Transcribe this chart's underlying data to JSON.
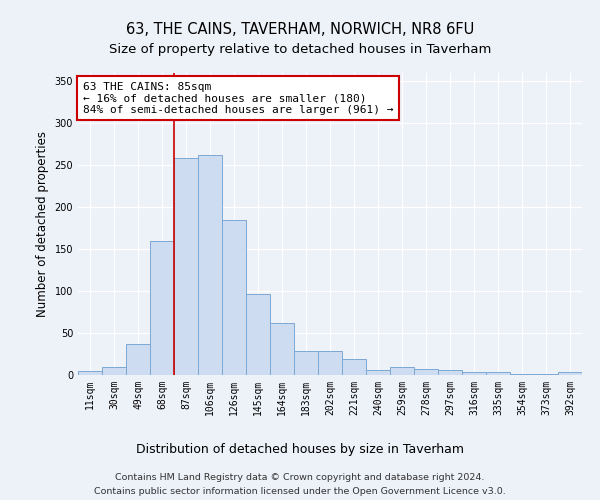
{
  "title": "63, THE CAINS, TAVERHAM, NORWICH, NR8 6FU",
  "subtitle": "Size of property relative to detached houses in Taverham",
  "xlabel": "Distribution of detached houses by size in Taverham",
  "ylabel": "Number of detached properties",
  "categories": [
    "11sqm",
    "30sqm",
    "49sqm",
    "68sqm",
    "87sqm",
    "106sqm",
    "126sqm",
    "145sqm",
    "164sqm",
    "183sqm",
    "202sqm",
    "221sqm",
    "240sqm",
    "259sqm",
    "278sqm",
    "297sqm",
    "316sqm",
    "335sqm",
    "354sqm",
    "373sqm",
    "392sqm"
  ],
  "values": [
    5,
    10,
    37,
    160,
    258,
    262,
    184,
    96,
    62,
    29,
    29,
    19,
    6,
    10,
    7,
    6,
    4,
    4,
    1,
    1,
    4
  ],
  "bar_color": "#cddcf0",
  "bar_edge_color": "#7aa8d4",
  "vline_x_index": 3.5,
  "vline_color": "#cc0000",
  "annotation_text": "63 THE CAINS: 85sqm\n← 16% of detached houses are smaller (180)\n84% of semi-detached houses are larger (961) →",
  "annotation_box_facecolor": "#ffffff",
  "annotation_box_edgecolor": "#cc0000",
  "ylim": [
    0,
    360
  ],
  "yticks": [
    0,
    50,
    100,
    150,
    200,
    250,
    300,
    350
  ],
  "bg_color": "#edf1f8",
  "grid_color": "#d0d8e8",
  "footer_line1": "Contains HM Land Registry data © Crown copyright and database right 2024.",
  "footer_line2": "Contains public sector information licensed under the Open Government Licence v3.0.",
  "title_fontsize": 10.5,
  "subtitle_fontsize": 9.5,
  "annotation_fontsize": 8,
  "tick_fontsize": 7,
  "ylabel_fontsize": 8.5,
  "xlabel_fontsize": 9,
  "footer_fontsize": 6.8
}
